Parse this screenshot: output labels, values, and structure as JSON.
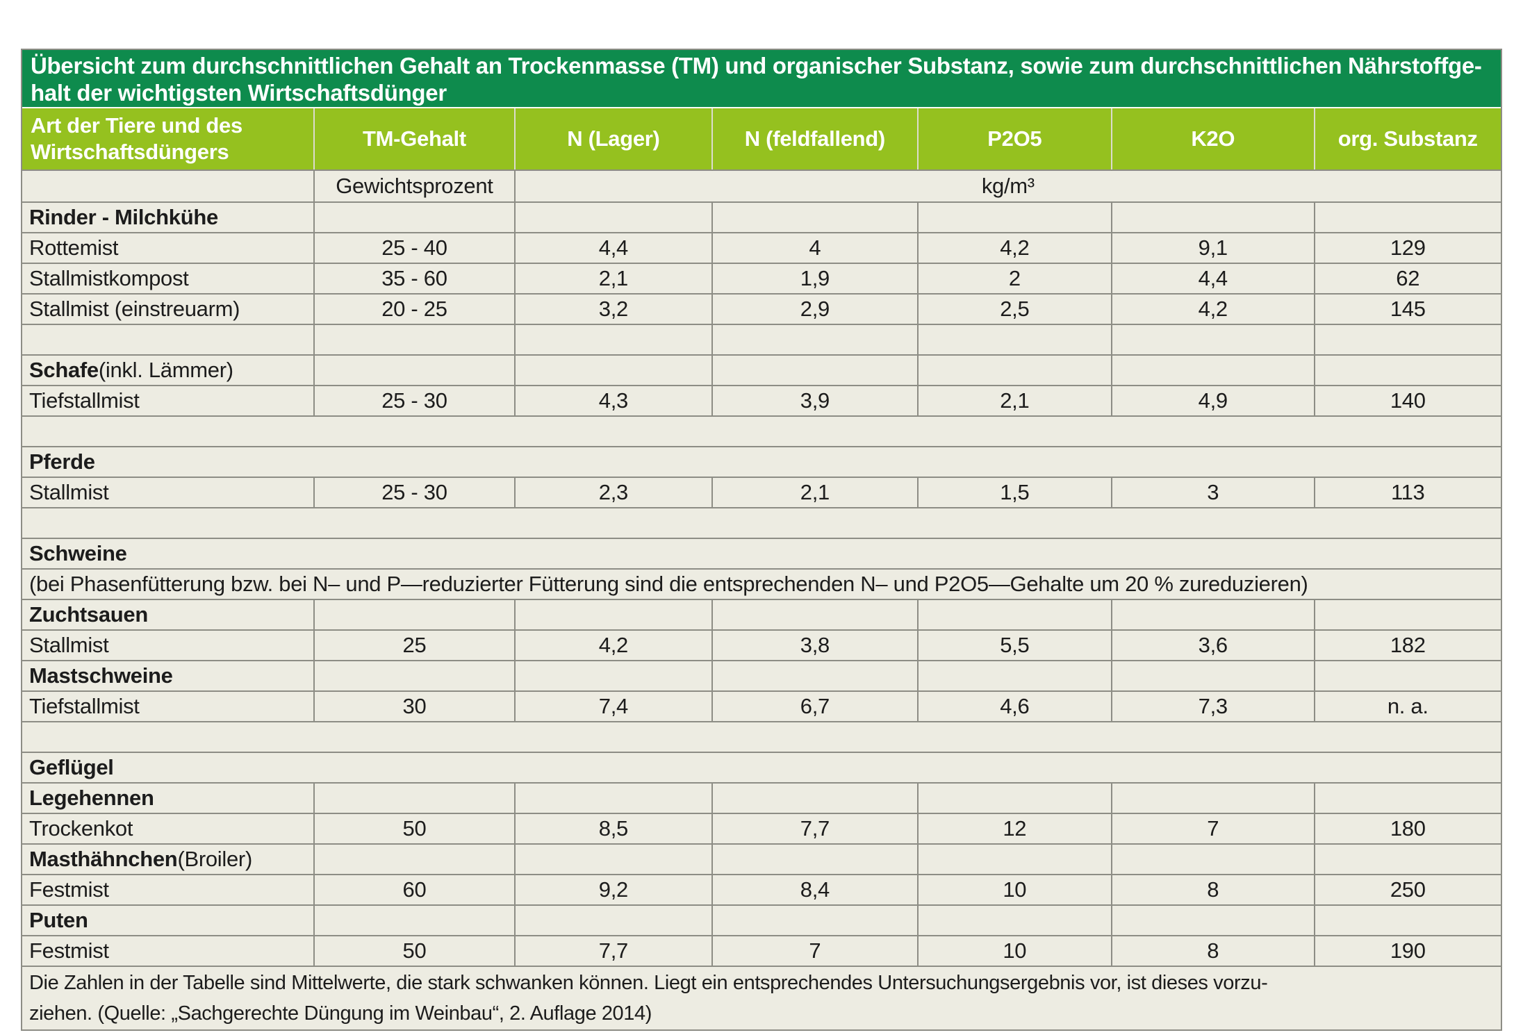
{
  "title": {
    "line1": "Übersicht zum durchschnittlichen Gehalt an Trockenmasse (TM) und organischer Substanz, sowie zum durchschnittlichen Nährstoffge-",
    "line2": "halt der wichtigsten Wirtschaftsdünger"
  },
  "columns": [
    "Art der Tiere und des Wirtschaftsdüngers",
    "TM-Gehalt",
    "N (Lager)",
    "N (feldfallend)",
    "P2O5",
    "K2O",
    "org. Substanz"
  ],
  "units": {
    "weight_percent": "Gewichtsprozent",
    "kg_per_m3": "kg/m³"
  },
  "rows": [
    {
      "type": "section",
      "label": "Rinder - Milchkühe",
      "suffix": ""
    },
    {
      "type": "data",
      "label": "Rottemist",
      "values": [
        "25 - 40",
        "4,4",
        "4",
        "4,2",
        "9,1",
        "129"
      ]
    },
    {
      "type": "data",
      "label": "Stallmistkompost",
      "values": [
        "35 - 60",
        "2,1",
        "1,9",
        "2",
        "4,4",
        "62"
      ]
    },
    {
      "type": "data",
      "label": "Stallmist (einstreuarm)",
      "values": [
        "20 - 25",
        "3,2",
        "2,9",
        "2,5",
        "4,2",
        "145"
      ]
    },
    {
      "type": "empty-cells"
    },
    {
      "type": "section",
      "label": "Schafe",
      "suffix": " (inkl. Lämmer)"
    },
    {
      "type": "data",
      "label": "Tiefstallmist",
      "values": [
        "25 - 30",
        "4,3",
        "3,9",
        "2,1",
        "4,9",
        "140"
      ]
    },
    {
      "type": "empty-span"
    },
    {
      "type": "section-span",
      "label": "Pferde"
    },
    {
      "type": "data",
      "label": "Stallmist",
      "values": [
        "25 - 30",
        "2,3",
        "2,1",
        "1,5",
        "3",
        "113"
      ]
    },
    {
      "type": "empty-span"
    },
    {
      "type": "section-span",
      "label": "Schweine"
    },
    {
      "type": "note-span",
      "text": "(bei Phasenfütterung bzw. bei N– und P—reduzierter Fütterung sind die entsprechenden N– und P2O5—Gehalte um 20 % zureduzieren)"
    },
    {
      "type": "section",
      "label": "Zuchtsauen",
      "suffix": ""
    },
    {
      "type": "data",
      "label": "Stallmist",
      "values": [
        "25",
        "4,2",
        "3,8",
        "5,5",
        "3,6",
        "182"
      ]
    },
    {
      "type": "section",
      "label": "Mastschweine",
      "suffix": ""
    },
    {
      "type": "data",
      "label": "Tiefstallmist",
      "values": [
        "30",
        "7,4",
        "6,7",
        "4,6",
        "7,3",
        "n. a."
      ]
    },
    {
      "type": "empty-span"
    },
    {
      "type": "section-span",
      "label": "Geflügel"
    },
    {
      "type": "section",
      "label": "Legehennen",
      "suffix": ""
    },
    {
      "type": "data",
      "label": "Trockenkot",
      "values": [
        "50",
        "8,5",
        "7,7",
        "12",
        "7",
        "180"
      ]
    },
    {
      "type": "section",
      "label": "Masthähnchen",
      "suffix": " (Broiler)"
    },
    {
      "type": "data",
      "label": "Festmist",
      "values": [
        "60",
        "9,2",
        "8,4",
        "10",
        "8",
        "250"
      ]
    },
    {
      "type": "section",
      "label": "Puten",
      "suffix": ""
    },
    {
      "type": "data",
      "label": "Festmist",
      "values": [
        "50",
        "7,7",
        "7",
        "10",
        "8",
        "190"
      ]
    }
  ],
  "footer": {
    "line1": "Die Zahlen in der Tabelle sind Mittelwerte, die stark schwanken können. Liegt ein entsprechendes Untersuchungsergebnis vor, ist dieses vorzu-",
    "line2": "ziehen. (Quelle: „Sachgerechte Düngung im Weinbau“, 2. Auflage 2014)"
  },
  "colors": {
    "title_bg": "#0e8b4d",
    "header_bg": "#95c11f",
    "row_bg": "#edece2",
    "border": "#8d8d85",
    "header_divider": "#dcdcce",
    "text": "#1c1c1c",
    "header_text": "#ffffff",
    "page_bg": "#ffffff"
  }
}
